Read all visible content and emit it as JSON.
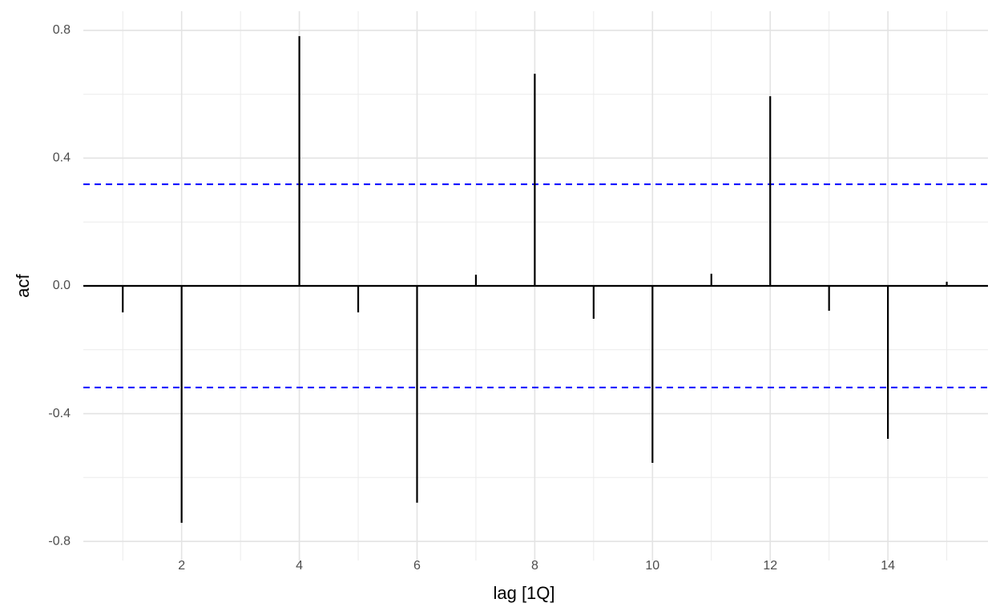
{
  "chart_data": {
    "type": "acf",
    "x_label": "lag [1Q]",
    "y_label": "acf",
    "x": [
      1,
      2,
      3,
      4,
      5,
      6,
      7,
      8,
      9,
      10,
      11,
      12,
      13,
      14,
      15
    ],
    "values": [
      -0.083,
      -0.742,
      -0.002,
      0.782,
      -0.083,
      -0.679,
      0.035,
      0.664,
      -0.103,
      -0.554,
      0.038,
      0.594,
      -0.078,
      -0.479,
      0.013
    ],
    "color": "#000000",
    "ci_lines": [
      0.318,
      -0.318
    ],
    "ci_color": "#0000ff",
    "xlim": [
      0.33,
      15.7
    ],
    "xticks": [
      2,
      4,
      6,
      8,
      10,
      12,
      14
    ],
    "ylim": [
      -0.86,
      0.86
    ],
    "yticks": [
      -0.8,
      -0.4,
      {
        "value": 0.0,
        "label": "0.0"
      },
      0.4,
      0.8
    ],
    "grid": true
  }
}
